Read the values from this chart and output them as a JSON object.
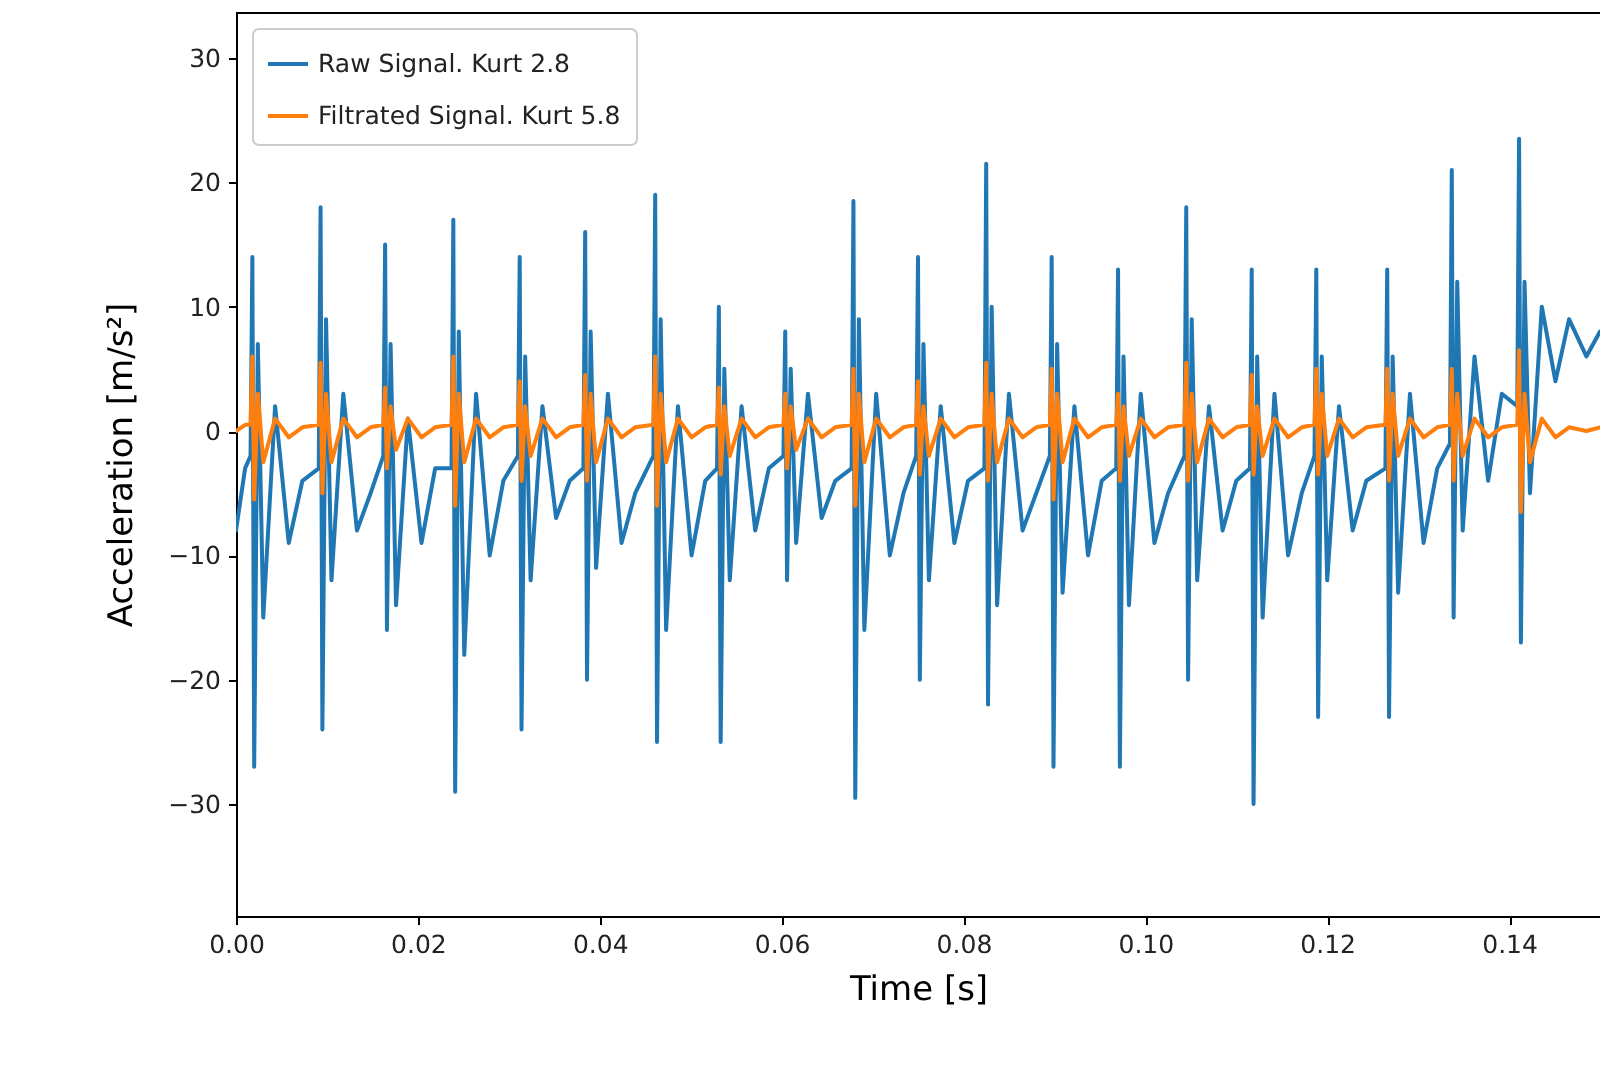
{
  "chart_data": {
    "type": "line",
    "xlabel": "Time [s]",
    "ylabel": "Acceleration [m/s²]",
    "x": [
      0,
      0.001,
      0.0016,
      0.0018,
      0.002,
      0.0024,
      0.003,
      0.0043,
      0.0058,
      0.0073,
      0.0091,
      0.0093,
      0.0095,
      0.0099,
      0.0105,
      0.0118,
      0.0133,
      0.0148,
      0.0162,
      0.0164,
      0.0166,
      0.017,
      0.0176,
      0.0189,
      0.0204,
      0.0219,
      0.0237,
      0.0239,
      0.0241,
      0.0245,
      0.0251,
      0.0264,
      0.0279,
      0.0294,
      0.031,
      0.0312,
      0.0314,
      0.0318,
      0.0324,
      0.0337,
      0.0352,
      0.0367,
      0.0382,
      0.0384,
      0.0386,
      0.039,
      0.0396,
      0.0409,
      0.0424,
      0.0439,
      0.0459,
      0.0461,
      0.0463,
      0.0467,
      0.0473,
      0.0486,
      0.0501,
      0.0516,
      0.0529,
      0.0531,
      0.0533,
      0.0537,
      0.0543,
      0.0556,
      0.0571,
      0.0586,
      0.0602,
      0.0604,
      0.0606,
      0.061,
      0.0616,
      0.0629,
      0.0644,
      0.0659,
      0.0677,
      0.0679,
      0.0681,
      0.0685,
      0.0691,
      0.0704,
      0.0719,
      0.0734,
      0.0748,
      0.075,
      0.0752,
      0.0756,
      0.0762,
      0.0775,
      0.079,
      0.0805,
      0.0823,
      0.0825,
      0.0827,
      0.0831,
      0.0837,
      0.085,
      0.0865,
      0.088,
      0.0895,
      0.0897,
      0.0899,
      0.0903,
      0.0909,
      0.0922,
      0.0937,
      0.0952,
      0.0968,
      0.097,
      0.0972,
      0.0976,
      0.0982,
      0.0995,
      0.101,
      0.1025,
      0.1043,
      0.1045,
      0.1047,
      0.1051,
      0.1057,
      0.107,
      0.1085,
      0.11,
      0.1115,
      0.1117,
      0.1119,
      0.1123,
      0.1129,
      0.1142,
      0.1157,
      0.1172,
      0.1186,
      0.1188,
      0.119,
      0.1194,
      0.12,
      0.1213,
      0.1228,
      0.1243,
      0.1264,
      0.1266,
      0.1268,
      0.1272,
      0.1278,
      0.1291,
      0.1306,
      0.1321,
      0.1335,
      0.1337,
      0.1339,
      0.1343,
      0.1349,
      0.1362,
      0.1377,
      0.1392,
      0.1409,
      0.1411,
      0.1413,
      0.1417,
      0.1423,
      0.1436,
      0.1451,
      0.1466,
      0.1485,
      0.15
    ],
    "series": [
      {
        "name": "Raw Signal. Kurt 2.8",
        "color": "#1f77b4",
        "values": [
          -8,
          -3,
          -2,
          14,
          -27,
          7,
          -15,
          2,
          -9,
          -4,
          -3,
          18,
          -24,
          9,
          -12,
          3,
          -8,
          -5,
          -2,
          15,
          -16,
          7,
          -14,
          1,
          -9,
          -3,
          -3,
          17,
          -29,
          8,
          -18,
          3,
          -10,
          -4,
          -2,
          14,
          -24,
          6,
          -12,
          2,
          -7,
          -4,
          -3,
          16,
          -20,
          8,
          -11,
          3,
          -9,
          -5,
          -2,
          19,
          -25,
          9,
          -16,
          2,
          -10,
          -4,
          -3,
          10,
          -25,
          5,
          -12,
          2,
          -8,
          -3,
          -2,
          8,
          -12,
          5,
          -9,
          3,
          -7,
          -4,
          -3,
          18.5,
          -29.5,
          9,
          -16,
          3,
          -10,
          -5,
          -2,
          14,
          -20,
          7,
          -12,
          2,
          -9,
          -4,
          -3,
          21.5,
          -22,
          10,
          -14,
          3,
          -8,
          -5,
          -2,
          14,
          -27,
          7,
          -13,
          2,
          -10,
          -4,
          -3,
          13,
          -27,
          6,
          -14,
          3,
          -9,
          -5,
          -2,
          18,
          -20,
          9,
          -12,
          2,
          -8,
          -4,
          -3,
          13,
          -30,
          6,
          -15,
          3,
          -10,
          -5,
          -2,
          13,
          -23,
          6,
          -12,
          2,
          -8,
          -4,
          -3,
          13,
          -23,
          6,
          -13,
          3,
          -9,
          -3,
          -1,
          21,
          -15,
          12,
          -8,
          6,
          -4,
          3,
          2,
          23.5,
          -17,
          12,
          -5,
          10,
          4,
          9,
          6,
          8
        ]
      },
      {
        "name": "Filtrated Signal. Kurt 5.8",
        "color": "#ff7f0e",
        "values": [
          0,
          0.5,
          0.5,
          6,
          -5.5,
          3,
          -2.5,
          1,
          -0.5,
          0.3,
          0.5,
          5.5,
          -5,
          3,
          -2.5,
          1,
          -0.5,
          0.3,
          0.5,
          3.5,
          -3,
          2,
          -1.5,
          1,
          -0.5,
          0.3,
          0.5,
          6,
          -6,
          3,
          -2.5,
          1,
          -0.5,
          0.3,
          0.5,
          4,
          -4,
          2,
          -2,
          1,
          -0.5,
          0.3,
          0.5,
          4.5,
          -4,
          3,
          -2.5,
          1,
          -0.5,
          0.3,
          0.5,
          6,
          -6,
          3,
          -2.5,
          1,
          -0.5,
          0.3,
          0.5,
          3.5,
          -3.5,
          2,
          -2,
          1,
          -0.5,
          0.3,
          0.5,
          3,
          -3,
          2,
          -1.5,
          1,
          -0.5,
          0.3,
          0.5,
          5,
          -6,
          3,
          -2.5,
          1,
          -0.5,
          0.3,
          0.5,
          4,
          -3.5,
          2,
          -2,
          1,
          -0.5,
          0.3,
          0.5,
          5.5,
          -4,
          3,
          -2.5,
          1,
          -0.5,
          0.3,
          0.5,
          5,
          -5.5,
          3,
          -2.5,
          1,
          -0.5,
          0.3,
          0.5,
          3,
          -4,
          2,
          -2,
          1,
          -0.5,
          0.3,
          0.5,
          5.5,
          -4,
          3,
          -2.5,
          1,
          -0.5,
          0.3,
          0.5,
          4.5,
          -3.5,
          2,
          -2,
          1,
          -0.5,
          0.3,
          0.5,
          5,
          -3.5,
          3,
          -2,
          1,
          -0.5,
          0.3,
          0.5,
          5,
          -4,
          3,
          -2,
          1,
          -0.5,
          0.3,
          0.5,
          5,
          -4,
          3,
          -2,
          1,
          -0.5,
          0.3,
          0.5,
          6.5,
          -6.5,
          3,
          -2.5,
          1,
          -0.5,
          0.3,
          0,
          0.3
        ]
      }
    ],
    "xlim": [
      0,
      0.15
    ],
    "ylim": [
      -39,
      33.7
    ],
    "xticks": [
      {
        "value": 0,
        "label": "0.00"
      },
      {
        "value": 0.02,
        "label": "0.02"
      },
      {
        "value": 0.04,
        "label": "0.04"
      },
      {
        "value": 0.06,
        "label": "0.06"
      },
      {
        "value": 0.08,
        "label": "0.08"
      },
      {
        "value": 0.1,
        "label": "0.10"
      },
      {
        "value": 0.12,
        "label": "0.12"
      },
      {
        "value": 0.14,
        "label": "0.14"
      }
    ],
    "yticks": [
      {
        "value": -30,
        "label": "−30"
      },
      {
        "value": -20,
        "label": "−20"
      },
      {
        "value": -10,
        "label": "−10"
      },
      0,
      10,
      20,
      30
    ],
    "legend": "top left",
    "grid": false,
    "line_style": "solid",
    "marker": "none"
  }
}
